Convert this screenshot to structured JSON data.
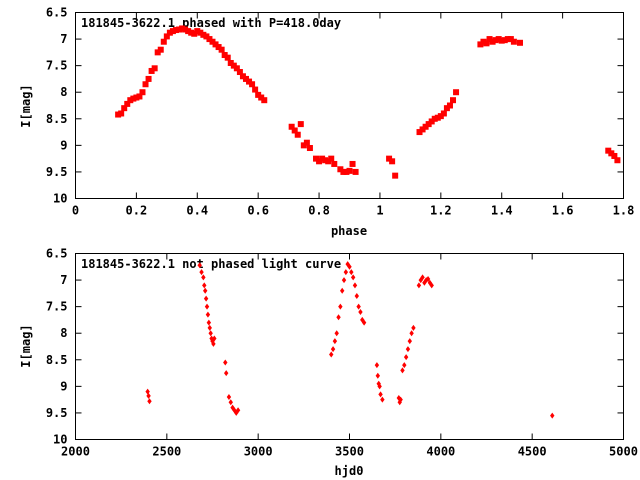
{
  "chart_data": [
    {
      "type": "scatter",
      "title": "181845-3622.1 phased with P=418.0day",
      "xlabel": "phase",
      "ylabel": "I[mag]",
      "xlim": [
        0,
        1.8
      ],
      "ylim": [
        6.5,
        10
      ],
      "y_inverted": true,
      "x_ticks": [
        "0",
        "0.2",
        "0.4",
        "0.6",
        "0.8",
        "1",
        "1.2",
        "1.4",
        "1.6",
        "1.8"
      ],
      "y_ticks": [
        "6.5",
        "7",
        "7.5",
        "8",
        "8.5",
        "9",
        "9.5",
        "10"
      ],
      "grid": false,
      "color": "#ff0000",
      "series": [
        {
          "x": [
            0.14,
            0.15,
            0.16,
            0.17,
            0.18,
            0.19,
            0.2,
            0.21,
            0.22,
            0.23,
            0.24,
            0.25,
            0.26,
            0.27,
            0.28,
            0.29,
            0.3,
            0.31,
            0.32,
            0.33,
            0.34,
            0.35,
            0.36,
            0.37,
            0.38,
            0.39,
            0.4,
            0.41,
            0.42,
            0.43,
            0.44,
            0.45,
            0.46,
            0.47,
            0.48,
            0.49,
            0.5,
            0.51,
            0.52,
            0.53,
            0.54,
            0.55,
            0.56,
            0.57,
            0.58,
            0.59,
            0.6,
            0.61,
            0.62,
            0.71,
            0.72,
            0.73,
            0.74,
            0.75,
            0.76,
            0.77,
            0.79,
            0.8,
            0.81,
            0.82,
            0.83,
            0.84,
            0.85,
            0.87,
            0.88,
            0.89,
            0.9,
            0.91,
            0.92,
            1.03,
            1.04,
            1.05,
            1.13,
            1.14,
            1.15,
            1.16,
            1.17,
            1.18,
            1.19,
            1.2,
            1.21,
            1.22,
            1.23,
            1.24,
            1.25,
            1.33,
            1.34,
            1.35,
            1.36,
            1.37,
            1.38,
            1.39,
            1.4,
            1.41,
            1.42,
            1.43,
            1.44,
            1.46,
            1.75,
            1.76,
            1.77,
            1.78
          ],
          "y": [
            8.42,
            8.4,
            8.3,
            8.22,
            8.15,
            8.12,
            8.1,
            8.08,
            8.0,
            7.85,
            7.75,
            7.6,
            7.55,
            7.25,
            7.2,
            7.05,
            6.95,
            6.88,
            6.85,
            6.83,
            6.82,
            6.8,
            6.82,
            6.85,
            6.88,
            6.9,
            6.85,
            6.88,
            6.92,
            6.95,
            7.0,
            7.05,
            7.1,
            7.15,
            7.2,
            7.3,
            7.35,
            7.45,
            7.5,
            7.55,
            7.62,
            7.7,
            7.75,
            7.8,
            7.85,
            7.95,
            8.05,
            8.1,
            8.15,
            8.65,
            8.72,
            8.8,
            8.6,
            9.0,
            8.95,
            9.05,
            9.25,
            9.3,
            9.25,
            9.28,
            9.3,
            9.25,
            9.35,
            9.45,
            9.5,
            9.5,
            9.48,
            9.35,
            9.5,
            9.25,
            9.3,
            9.57,
            8.75,
            8.7,
            8.65,
            8.6,
            8.55,
            8.5,
            8.48,
            8.45,
            8.4,
            8.3,
            8.25,
            8.15,
            8.0,
            7.1,
            7.05,
            7.08,
            7.0,
            7.05,
            7.02,
            7.0,
            7.03,
            7.02,
            7.0,
            7.0,
            7.05,
            7.07,
            9.1,
            9.15,
            9.2,
            9.28
          ]
        }
      ]
    },
    {
      "type": "scatter",
      "title": "181845-3622.1 not phased light curve",
      "xlabel": "hjd0",
      "ylabel": "I[mag]",
      "xlim": [
        2000,
        5000
      ],
      "ylim": [
        6.5,
        10
      ],
      "y_inverted": true,
      "x_ticks": [
        "2000",
        "2500",
        "3000",
        "3500",
        "4000",
        "4500",
        "5000"
      ],
      "y_ticks": [
        "6.5",
        "7",
        "7.5",
        "8",
        "8.5",
        "9",
        "9.5",
        "10"
      ],
      "grid": false,
      "color": "#ff0000",
      "series": [
        {
          "x": [
            2395,
            2400,
            2405,
            2680,
            2690,
            2700,
            2705,
            2710,
            2715,
            2720,
            2725,
            2730,
            2735,
            2740,
            2745,
            2750,
            2755,
            2760,
            2820,
            2825,
            2840,
            2850,
            2860,
            2870,
            2880,
            2890,
            3400,
            3410,
            3420,
            3430,
            3440,
            3450,
            3460,
            3470,
            3480,
            3490,
            3500,
            3510,
            3520,
            3530,
            3540,
            3550,
            3560,
            3570,
            3580,
            3650,
            3655,
            3660,
            3665,
            3670,
            3680,
            3770,
            3775,
            3780,
            3790,
            3800,
            3810,
            3820,
            3830,
            3840,
            3850,
            3880,
            3890,
            3900,
            3910,
            3920,
            3930,
            3940,
            3950,
            4610
          ],
          "y": [
            9.1,
            9.18,
            9.28,
            6.72,
            6.85,
            6.95,
            7.1,
            7.2,
            7.35,
            7.5,
            7.65,
            7.8,
            7.9,
            8.0,
            8.1,
            8.15,
            8.2,
            8.1,
            8.55,
            8.75,
            9.2,
            9.3,
            9.4,
            9.45,
            9.5,
            9.45,
            8.4,
            8.3,
            8.15,
            8.0,
            7.7,
            7.5,
            7.2,
            7.0,
            6.85,
            6.7,
            6.75,
            6.85,
            6.95,
            7.1,
            7.3,
            7.5,
            7.6,
            7.75,
            7.8,
            8.6,
            8.8,
            8.95,
            9.0,
            9.15,
            9.25,
            9.22,
            9.3,
            9.25,
            8.7,
            8.6,
            8.45,
            8.3,
            8.15,
            8.0,
            7.9,
            7.1,
            7.0,
            6.95,
            7.05,
            7.0,
            6.98,
            7.05,
            7.1,
            9.55
          ]
        }
      ]
    }
  ]
}
